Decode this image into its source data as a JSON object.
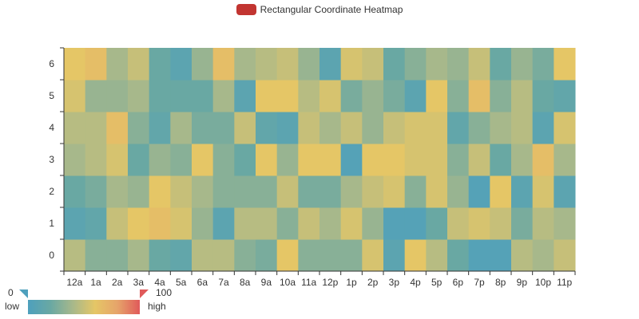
{
  "legend": {
    "label": "Rectangular Coordinate Heatmap",
    "color": "#c23531"
  },
  "visual_map": {
    "min_label": "0",
    "max_label": "100",
    "low_label": "low",
    "high_label": "high",
    "colors": [
      "#4ea0bd",
      "#69a8a3",
      "#a7b88b",
      "#e5c666",
      "#e6a46a",
      "#e05a5a"
    ]
  },
  "chart_data": {
    "type": "heatmap",
    "title": "",
    "x": [
      "12a",
      "1a",
      "2a",
      "3a",
      "4a",
      "5a",
      "6a",
      "7a",
      "8a",
      "9a",
      "10a",
      "11a",
      "12p",
      "1p",
      "2p",
      "3p",
      "4p",
      "5p",
      "6p",
      "7p",
      "8p",
      "9p",
      "10p",
      "11p"
    ],
    "y": [
      "0",
      "1",
      "2",
      "3",
      "4",
      "5",
      "6"
    ],
    "value_range": [
      0,
      100
    ],
    "grid": false,
    "legend_position": "top-center",
    "values": [
      [
        45,
        30,
        30,
        40,
        20,
        15,
        45,
        45,
        30,
        25,
        60,
        30,
        30,
        30,
        55,
        10,
        60,
        45,
        20,
        5,
        5,
        45,
        40,
        50
      ],
      [
        10,
        15,
        50,
        60,
        65,
        55,
        35,
        10,
        45,
        45,
        30,
        50,
        40,
        55,
        35,
        5,
        5,
        20,
        50,
        55,
        50,
        25,
        45,
        40
      ],
      [
        20,
        25,
        40,
        35,
        60,
        50,
        40,
        30,
        30,
        30,
        50,
        25,
        25,
        40,
        50,
        55,
        30,
        55,
        35,
        5,
        60,
        10,
        55,
        10
      ],
      [
        40,
        45,
        55,
        20,
        35,
        30,
        60,
        30,
        20,
        60,
        35,
        60,
        60,
        5,
        60,
        60,
        55,
        55,
        30,
        50,
        20,
        40,
        65,
        40
      ],
      [
        45,
        45,
        65,
        30,
        15,
        40,
        25,
        25,
        50,
        15,
        10,
        50,
        40,
        50,
        35,
        50,
        55,
        55,
        15,
        30,
        40,
        45,
        10,
        55
      ],
      [
        55,
        35,
        35,
        40,
        20,
        20,
        20,
        40,
        10,
        60,
        60,
        45,
        55,
        25,
        35,
        25,
        10,
        60,
        30,
        65,
        30,
        45,
        20,
        15
      ],
      [
        60,
        65,
        40,
        50,
        20,
        10,
        35,
        65,
        40,
        45,
        50,
        35,
        10,
        55,
        50,
        20,
        30,
        40,
        35,
        50,
        20,
        35,
        25,
        60
      ]
    ]
  }
}
